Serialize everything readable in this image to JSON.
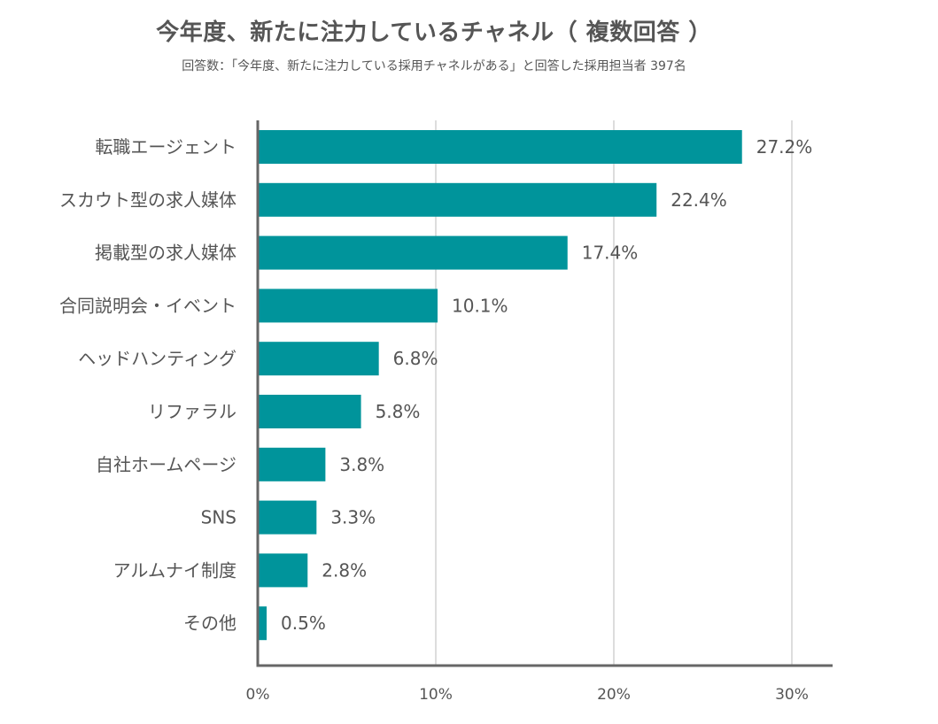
{
  "title": "今年度、新たに注力しているチャネル（ 複数回答 ）",
  "subtitle": "回答数：「今年度、新たに注力している採用チャネルがある」と回答した採用担当者 397名",
  "colors": {
    "bar": "#00949B",
    "grid": "#DDDDDD",
    "axis": "#666666",
    "text": "#555555"
  },
  "chart_data": {
    "type": "bar",
    "orientation": "horizontal",
    "categories": [
      "転職エージェント",
      "スカウト型の求人媒体",
      "掲載型の求人媒体",
      "合同説明会・イベント",
      "ヘッドハンティング",
      "リファラル",
      "自社ホームページ",
      "SNS",
      "アルムナイ制度",
      "その他"
    ],
    "values": [
      27.2,
      22.4,
      17.4,
      10.1,
      6.8,
      5.8,
      3.8,
      3.3,
      2.8,
      0.5
    ],
    "value_labels": [
      "27.2%",
      "22.4%",
      "17.4%",
      "10.1%",
      "6.8%",
      "5.8%",
      "3.8%",
      "3.3%",
      "2.8%",
      "0.5%"
    ],
    "xlim": [
      0,
      30
    ],
    "ticks": [
      0,
      10,
      20,
      30
    ],
    "tick_labels": [
      "0%",
      "10%",
      "20%",
      "30%"
    ],
    "grid": true
  }
}
